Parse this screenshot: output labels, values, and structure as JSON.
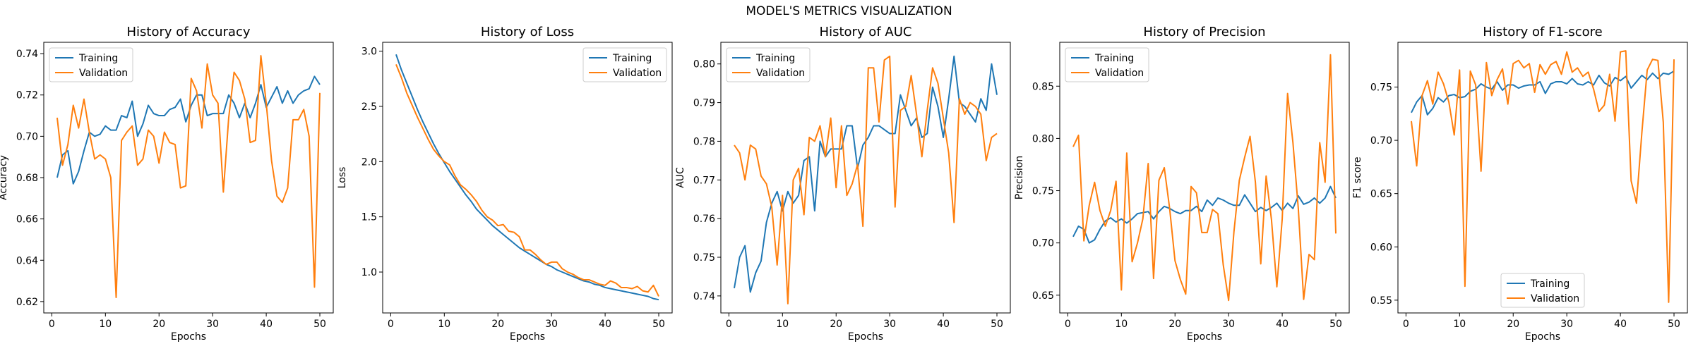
{
  "figure": {
    "suptitle": "MODEL'S METRICS VISUALIZATION"
  },
  "colors": {
    "training": "#1f77b4",
    "validation": "#ff7f0e"
  },
  "chart_data": [
    {
      "type": "line",
      "title": "History of Accuracy",
      "xlabel": "Epochs",
      "ylabel": "Accuracy",
      "xlim": [
        -1.5,
        52.5
      ],
      "ylim": [
        0.6145,
        0.7455
      ],
      "xticks": [
        0,
        10,
        20,
        30,
        40,
        50
      ],
      "yticks": [
        0.62,
        0.64,
        0.66,
        0.68,
        0.7,
        0.72,
        0.74
      ],
      "ytick_labels": [
        "0.62",
        "0.64",
        "0.66",
        "0.68",
        "0.70",
        "0.72",
        "0.74"
      ],
      "legend": "upper left",
      "x": [
        1,
        2,
        3,
        4,
        5,
        6,
        7,
        8,
        9,
        10,
        11,
        12,
        13,
        14,
        15,
        16,
        17,
        18,
        19,
        20,
        21,
        22,
        23,
        24,
        25,
        26,
        27,
        28,
        29,
        30,
        31,
        32,
        33,
        34,
        35,
        36,
        37,
        38,
        39,
        40,
        41,
        42,
        43,
        44,
        45,
        46,
        47,
        48,
        49,
        50
      ],
      "series": [
        {
          "name": "Training",
          "values": [
            0.68,
            0.691,
            0.693,
            0.677,
            0.683,
            0.693,
            0.702,
            0.7,
            0.701,
            0.705,
            0.703,
            0.703,
            0.71,
            0.709,
            0.717,
            0.7,
            0.706,
            0.715,
            0.711,
            0.71,
            0.71,
            0.713,
            0.714,
            0.718,
            0.707,
            0.715,
            0.72,
            0.72,
            0.71,
            0.711,
            0.711,
            0.711,
            0.72,
            0.716,
            0.709,
            0.716,
            0.709,
            0.716,
            0.725,
            0.714,
            0.719,
            0.724,
            0.716,
            0.722,
            0.716,
            0.72,
            0.722,
            0.723,
            0.729,
            0.725
          ]
        },
        {
          "name": "Validation",
          "values": [
            0.709,
            0.686,
            0.696,
            0.715,
            0.704,
            0.718,
            0.702,
            0.689,
            0.691,
            0.689,
            0.68,
            0.622,
            0.698,
            0.702,
            0.705,
            0.686,
            0.689,
            0.703,
            0.7,
            0.687,
            0.702,
            0.697,
            0.696,
            0.675,
            0.676,
            0.728,
            0.722,
            0.704,
            0.735,
            0.72,
            0.716,
            0.673,
            0.709,
            0.731,
            0.727,
            0.718,
            0.697,
            0.698,
            0.739,
            0.716,
            0.688,
            0.671,
            0.668,
            0.675,
            0.708,
            0.708,
            0.713,
            0.7,
            0.627,
            0.721
          ]
        }
      ]
    },
    {
      "type": "line",
      "title": "History of Loss",
      "xlabel": "Epochs",
      "ylabel": "Loss",
      "xlim": [
        -1.5,
        52.5
      ],
      "ylim": [
        0.63,
        3.08
      ],
      "xticks": [
        0,
        10,
        20,
        30,
        40,
        50
      ],
      "yticks": [
        1.0,
        1.5,
        2.0,
        2.5,
        3.0
      ],
      "ytick_labels": [
        "1.0",
        "1.5",
        "2.0",
        "2.5",
        "3.0"
      ],
      "legend": "upper right",
      "x": [
        1,
        2,
        3,
        4,
        5,
        6,
        7,
        8,
        9,
        10,
        11,
        12,
        13,
        14,
        15,
        16,
        17,
        18,
        19,
        20,
        21,
        22,
        23,
        24,
        25,
        26,
        27,
        28,
        29,
        30,
        31,
        32,
        33,
        34,
        35,
        36,
        37,
        38,
        39,
        40,
        41,
        42,
        43,
        44,
        45,
        46,
        47,
        48,
        49,
        50
      ],
      "series": [
        {
          "name": "Training",
          "values": [
            2.97,
            2.83,
            2.71,
            2.59,
            2.47,
            2.36,
            2.26,
            2.16,
            2.07,
            1.99,
            1.91,
            1.84,
            1.77,
            1.7,
            1.64,
            1.57,
            1.52,
            1.47,
            1.42,
            1.38,
            1.34,
            1.3,
            1.26,
            1.22,
            1.19,
            1.16,
            1.13,
            1.1,
            1.07,
            1.05,
            1.02,
            1.0,
            0.98,
            0.96,
            0.94,
            0.92,
            0.91,
            0.89,
            0.88,
            0.86,
            0.85,
            0.84,
            0.83,
            0.82,
            0.81,
            0.8,
            0.79,
            0.78,
            0.76,
            0.75
          ]
        },
        {
          "name": "Validation",
          "values": [
            2.88,
            2.76,
            2.62,
            2.51,
            2.4,
            2.3,
            2.2,
            2.11,
            2.05,
            2.0,
            1.97,
            1.87,
            1.79,
            1.75,
            1.7,
            1.64,
            1.56,
            1.5,
            1.47,
            1.42,
            1.43,
            1.37,
            1.36,
            1.32,
            1.2,
            1.2,
            1.16,
            1.11,
            1.07,
            1.09,
            1.09,
            1.03,
            1.0,
            0.98,
            0.95,
            0.93,
            0.93,
            0.91,
            0.89,
            0.88,
            0.92,
            0.9,
            0.86,
            0.86,
            0.85,
            0.87,
            0.83,
            0.82,
            0.88,
            0.78
          ]
        }
      ]
    },
    {
      "type": "line",
      "title": "History of AUC",
      "xlabel": "Epochs",
      "ylabel": "AUC",
      "xlim": [
        -1.5,
        52.5
      ],
      "ylim": [
        0.7356,
        0.8056
      ],
      "xticks": [
        0,
        10,
        20,
        30,
        40,
        50
      ],
      "yticks": [
        0.74,
        0.75,
        0.76,
        0.77,
        0.78,
        0.79,
        0.8
      ],
      "ytick_labels": [
        "0.74",
        "0.75",
        "0.76",
        "0.77",
        "0.78",
        "0.79",
        "0.80"
      ],
      "legend": "upper left",
      "x": [
        1,
        2,
        3,
        4,
        5,
        6,
        7,
        8,
        9,
        10,
        11,
        12,
        13,
        14,
        15,
        16,
        17,
        18,
        19,
        20,
        21,
        22,
        23,
        24,
        25,
        26,
        27,
        28,
        29,
        30,
        31,
        32,
        33,
        34,
        35,
        36,
        37,
        38,
        39,
        40,
        41,
        42,
        43,
        44,
        45,
        46,
        47,
        48,
        49,
        50
      ],
      "series": [
        {
          "name": "Training",
          "values": [
            0.742,
            0.75,
            0.753,
            0.741,
            0.746,
            0.749,
            0.759,
            0.764,
            0.767,
            0.762,
            0.767,
            0.764,
            0.766,
            0.775,
            0.776,
            0.762,
            0.78,
            0.776,
            0.778,
            0.778,
            0.778,
            0.784,
            0.784,
            0.773,
            0.779,
            0.781,
            0.784,
            0.784,
            0.783,
            0.782,
            0.782,
            0.792,
            0.788,
            0.784,
            0.786,
            0.781,
            0.782,
            0.794,
            0.789,
            0.781,
            0.791,
            0.802,
            0.79,
            0.789,
            0.787,
            0.785,
            0.791,
            0.788,
            0.8,
            0.792
          ]
        },
        {
          "name": "Validation",
          "values": [
            0.779,
            0.777,
            0.77,
            0.779,
            0.778,
            0.771,
            0.769,
            0.763,
            0.748,
            0.766,
            0.738,
            0.77,
            0.773,
            0.761,
            0.781,
            0.78,
            0.784,
            0.776,
            0.786,
            0.768,
            0.784,
            0.766,
            0.769,
            0.774,
            0.758,
            0.799,
            0.799,
            0.785,
            0.801,
            0.802,
            0.763,
            0.788,
            0.789,
            0.797,
            0.787,
            0.776,
            0.788,
            0.799,
            0.795,
            0.786,
            0.777,
            0.759,
            0.791,
            0.787,
            0.79,
            0.789,
            0.787,
            0.775,
            0.781,
            0.782
          ]
        }
      ]
    },
    {
      "type": "line",
      "title": "History of Precision",
      "xlabel": "Epochs",
      "ylabel": "Precision",
      "xlim": [
        -1.5,
        52.5
      ],
      "ylim": [
        0.633,
        0.892
      ],
      "xticks": [
        0,
        10,
        20,
        30,
        40,
        50
      ],
      "yticks": [
        0.65,
        0.7,
        0.75,
        0.8,
        0.85
      ],
      "ytick_labels": [
        "0.65",
        "0.70",
        "0.75",
        "0.80",
        "0.85"
      ],
      "legend": "upper left",
      "x": [
        1,
        2,
        3,
        4,
        5,
        6,
        7,
        8,
        9,
        10,
        11,
        12,
        13,
        14,
        15,
        16,
        17,
        18,
        19,
        20,
        21,
        22,
        23,
        24,
        25,
        26,
        27,
        28,
        29,
        30,
        31,
        32,
        33,
        34,
        35,
        36,
        37,
        38,
        39,
        40,
        41,
        42,
        43,
        44,
        45,
        46,
        47,
        48,
        49,
        50
      ],
      "series": [
        {
          "name": "Training",
          "values": [
            0.706,
            0.716,
            0.713,
            0.7,
            0.703,
            0.713,
            0.721,
            0.724,
            0.72,
            0.723,
            0.719,
            0.723,
            0.728,
            0.729,
            0.73,
            0.723,
            0.73,
            0.735,
            0.733,
            0.73,
            0.728,
            0.731,
            0.731,
            0.735,
            0.73,
            0.741,
            0.736,
            0.743,
            0.741,
            0.738,
            0.736,
            0.736,
            0.746,
            0.738,
            0.73,
            0.734,
            0.731,
            0.734,
            0.738,
            0.731,
            0.738,
            0.733,
            0.745,
            0.737,
            0.739,
            0.743,
            0.738,
            0.743,
            0.754,
            0.743
          ]
        },
        {
          "name": "Validation",
          "values": [
            0.792,
            0.803,
            0.702,
            0.736,
            0.758,
            0.731,
            0.716,
            0.731,
            0.759,
            0.655,
            0.786,
            0.682,
            0.7,
            0.723,
            0.776,
            0.666,
            0.76,
            0.772,
            0.733,
            0.683,
            0.665,
            0.651,
            0.754,
            0.748,
            0.71,
            0.71,
            0.732,
            0.728,
            0.679,
            0.645,
            0.711,
            0.76,
            0.782,
            0.802,
            0.758,
            0.68,
            0.764,
            0.722,
            0.658,
            0.723,
            0.843,
            0.796,
            0.733,
            0.646,
            0.689,
            0.684,
            0.796,
            0.758,
            0.88,
            0.709
          ]
        }
      ]
    },
    {
      "type": "line",
      "title": "History of F1-score",
      "xlabel": "Epochs",
      "ylabel": "F1 score",
      "xlim": [
        -1.5,
        52.5
      ],
      "ylim": [
        0.538,
        0.792
      ],
      "xticks": [
        0,
        10,
        20,
        30,
        40,
        50
      ],
      "yticks": [
        0.55,
        0.6,
        0.65,
        0.7,
        0.75
      ],
      "ytick_labels": [
        "0.55",
        "0.60",
        "0.65",
        "0.70",
        "0.75"
      ],
      "legend": "lower center",
      "x": [
        1,
        2,
        3,
        4,
        5,
        6,
        7,
        8,
        9,
        10,
        11,
        12,
        13,
        14,
        15,
        16,
        17,
        18,
        19,
        20,
        21,
        22,
        23,
        24,
        25,
        26,
        27,
        28,
        29,
        30,
        31,
        32,
        33,
        34,
        35,
        36,
        37,
        38,
        39,
        40,
        41,
        42,
        43,
        44,
        45,
        46,
        47,
        48,
        49,
        50
      ],
      "series": [
        {
          "name": "Training",
          "values": [
            0.726,
            0.736,
            0.742,
            0.724,
            0.73,
            0.74,
            0.736,
            0.742,
            0.743,
            0.74,
            0.741,
            0.746,
            0.748,
            0.753,
            0.75,
            0.748,
            0.755,
            0.747,
            0.752,
            0.752,
            0.749,
            0.751,
            0.752,
            0.752,
            0.755,
            0.744,
            0.753,
            0.755,
            0.755,
            0.753,
            0.758,
            0.753,
            0.752,
            0.755,
            0.752,
            0.761,
            0.754,
            0.751,
            0.759,
            0.756,
            0.76,
            0.749,
            0.755,
            0.761,
            0.757,
            0.763,
            0.758,
            0.763,
            0.762,
            0.765
          ]
        },
        {
          "name": "Validation",
          "values": [
            0.718,
            0.676,
            0.742,
            0.756,
            0.734,
            0.764,
            0.753,
            0.736,
            0.705,
            0.766,
            0.563,
            0.765,
            0.752,
            0.671,
            0.773,
            0.742,
            0.757,
            0.767,
            0.734,
            0.772,
            0.775,
            0.768,
            0.772,
            0.745,
            0.771,
            0.762,
            0.771,
            0.774,
            0.762,
            0.783,
            0.764,
            0.768,
            0.76,
            0.764,
            0.748,
            0.727,
            0.733,
            0.762,
            0.718,
            0.783,
            0.784,
            0.662,
            0.641,
            0.707,
            0.766,
            0.776,
            0.775,
            0.717,
            0.548,
            0.776
          ]
        }
      ]
    }
  ]
}
